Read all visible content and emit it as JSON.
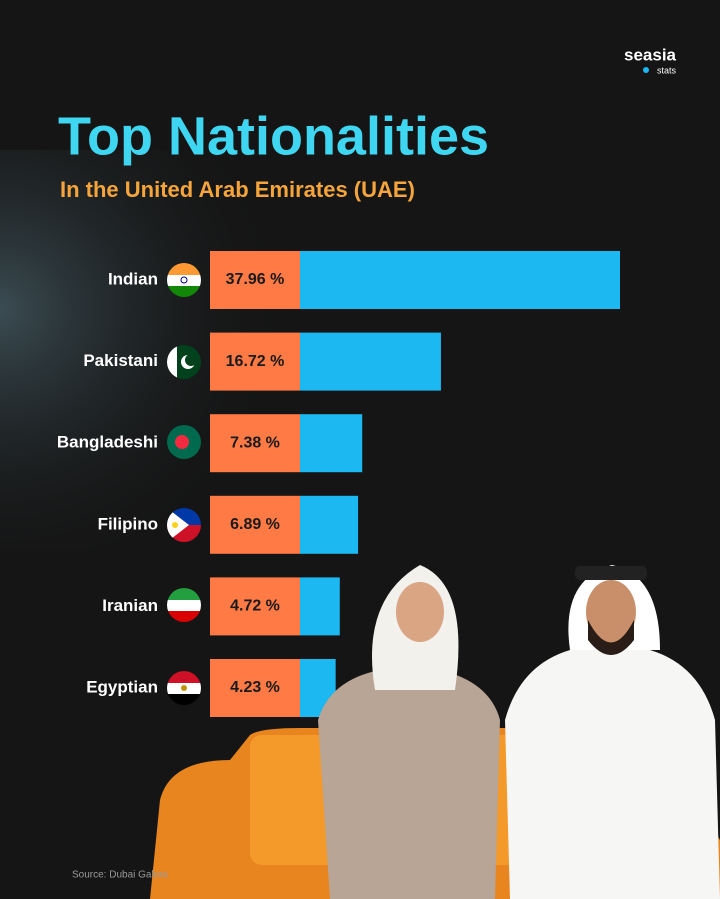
{
  "chart_data": {
    "type": "hbar",
    "title": "Top Nationalities",
    "subtitle": "In the United Arab Emirates (UAE)",
    "categories": [
      "Indian",
      "Pakistani",
      "Bangladeshi",
      "Filipino",
      "Iranian",
      "Egyptian"
    ],
    "values": [
      37.96,
      16.72,
      7.38,
      6.89,
      4.72,
      4.23
    ],
    "value_labels": [
      "37.96 %",
      "16.72 %",
      "7.38 %",
      "6.89 %",
      "4.72 %",
      "4.23 %"
    ],
    "color": "#1bb8f2",
    "label_box_color": "#ff7a45",
    "source": "Source: Dubai Galore"
  },
  "brand": {
    "name": "seasia",
    "tag": "stats"
  }
}
